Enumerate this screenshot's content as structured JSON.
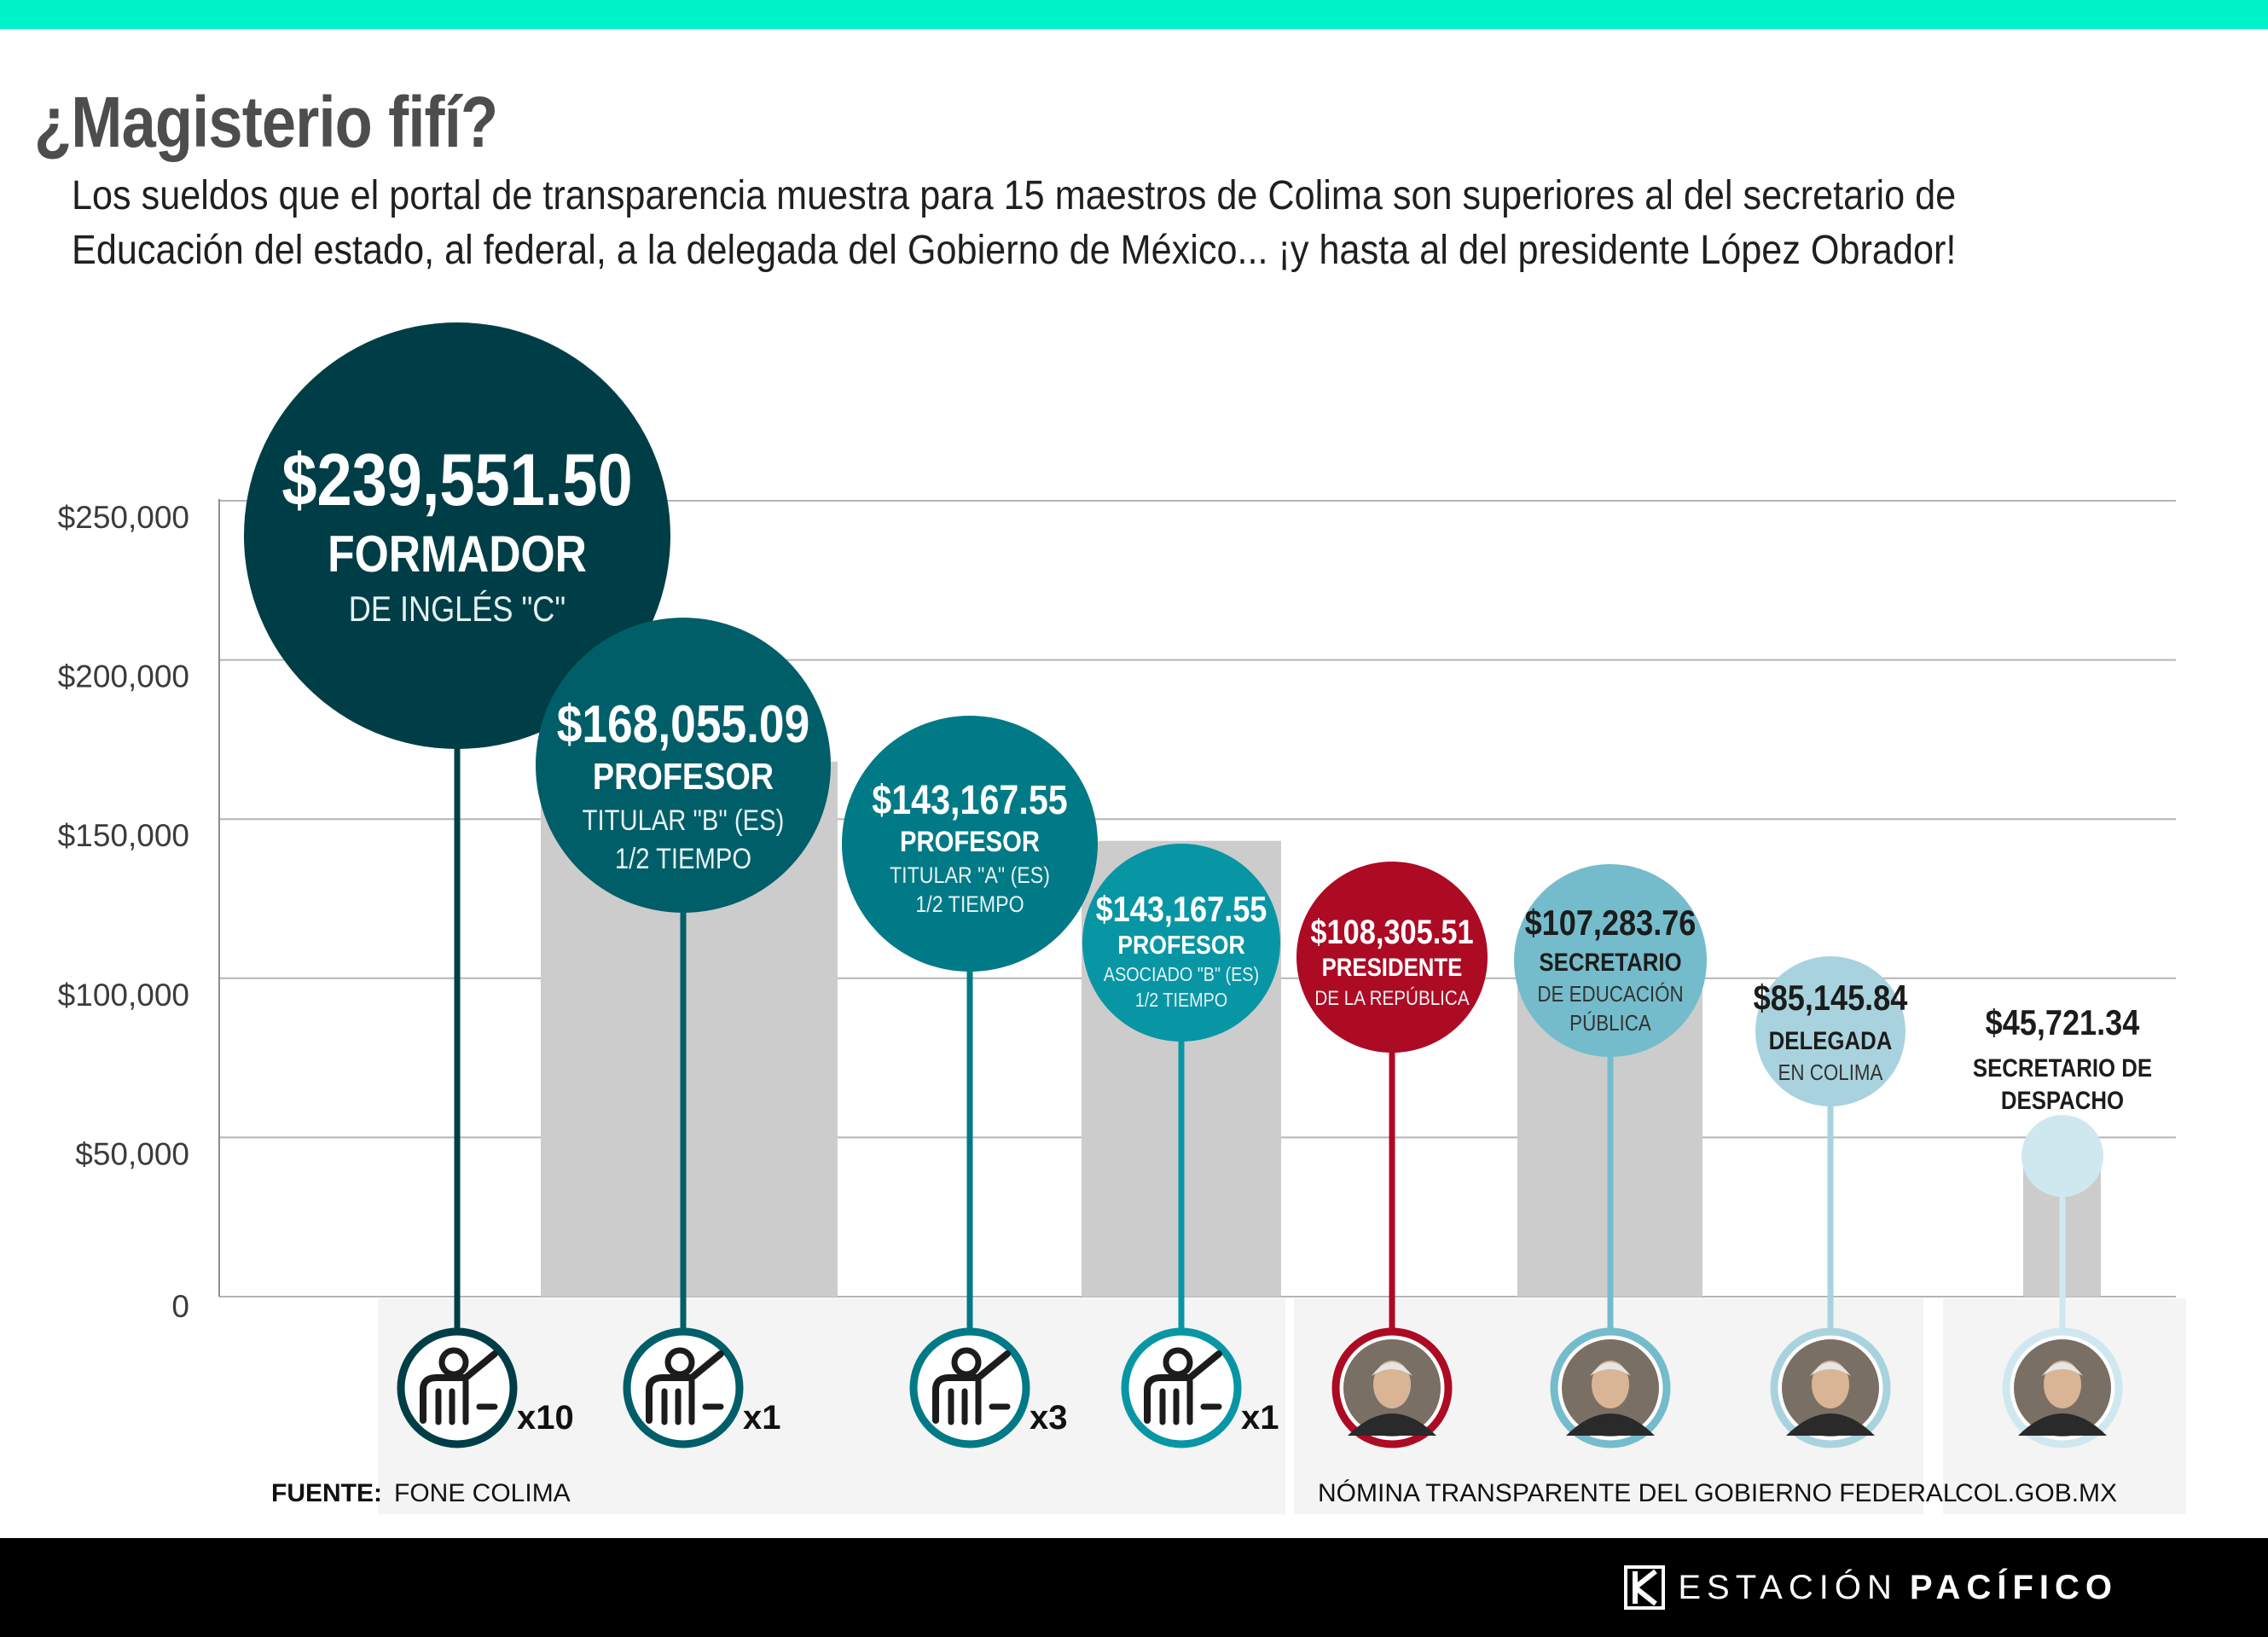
{
  "header": {
    "title": "¿Magisterio fifí?",
    "subtitle": "Los sueldos que el portal de transparencia muestra para 15 maestros de Colima son superiores al del secretario de Educación del estado, al federal, a la delegada del Gobierno de México... ¡y hasta al del presidente López Obrador!"
  },
  "colors": {
    "teal_dark": "#003e47",
    "teal_mid1": "#005e69",
    "teal_mid2": "#007a86",
    "teal_mid3": "#0896a5",
    "red": "#ad0a24",
    "blue_light1": "#74bccb",
    "blue_light2": "#a8d3de",
    "blue_light3": "#cfe8ef",
    "bar_gray": "#cccccc",
    "panel_gray": "#f4f4f4",
    "accent_top": "#00f2c8"
  },
  "chart_data": {
    "type": "bar",
    "title": "¿Magisterio fifí?",
    "ylim": [
      0,
      250000
    ],
    "yticks": [
      0,
      50000,
      100000,
      150000,
      200000,
      250000
    ],
    "ytick_labels": [
      "0",
      "$50,000",
      "$100,000",
      "$150,000",
      "$200,000",
      "$250,000"
    ],
    "grid": true,
    "source_label": "FUENTE:",
    "sources": [
      "FONE COLIMA",
      "NÓMINA TRANSPARENTE DEL GOBIERNO FEDERAL",
      "COL.GOB.MX"
    ],
    "bars": [
      {
        "value": 239551.5,
        "amount": "$239,551.50",
        "title": "FORMADOR",
        "detail": [
          "DE INGLÉS \"C\""
        ],
        "count": "x10",
        "icon": "teacher-icon",
        "color": "#003e47",
        "source": "FONE COLIMA"
      },
      {
        "value": 168055.09,
        "amount": "$168,055.09",
        "title": "PROFESOR",
        "detail": [
          "TITULAR \"B\" (ES)",
          "1/2 TIEMPO"
        ],
        "count": "x1",
        "icon": "teacher-icon",
        "color": "#005e69",
        "source": "FONE COLIMA"
      },
      {
        "value": 143167.55,
        "amount": "$143,167.55",
        "title": "PROFESOR",
        "detail": [
          "TITULAR \"A\" (ES)",
          "1/2 TIEMPO"
        ],
        "count": "x3",
        "icon": "teacher-icon",
        "color": "#007a86",
        "source": "FONE COLIMA"
      },
      {
        "value": 143167.55,
        "amount": "$143,167.55",
        "title": "PROFESOR",
        "detail": [
          "ASOCIADO \"B\" (ES)",
          "1/2 TIEMPO"
        ],
        "count": "x1",
        "icon": "teacher-icon",
        "color": "#0896a5",
        "source": "FONE COLIMA"
      },
      {
        "value": 108305.51,
        "amount": "$108,305.51",
        "title": "PRESIDENTE",
        "detail": [
          "DE LA REPÚBLICA"
        ],
        "count": "",
        "icon": "portrait-icon",
        "color": "#ad0a24",
        "source": "NÓMINA TRANSPARENTE DEL GOBIERNO FEDERAL"
      },
      {
        "value": 107283.76,
        "amount": "$107,283.76",
        "title": "SECRETARIO",
        "detail": [
          "DE EDUCACIÓN",
          "PÚBLICA"
        ],
        "count": "",
        "icon": "portrait-icon",
        "color": "#74bccb",
        "source": "NÓMINA TRANSPARENTE DEL GOBIERNO FEDERAL"
      },
      {
        "value": 85145.84,
        "amount": "$85,145.84",
        "title": "DELEGADA",
        "detail": [
          "EN COLIMA"
        ],
        "count": "",
        "icon": "portrait-icon",
        "color": "#a8d3de",
        "source": "NÓMINA TRANSPARENTE DEL GOBIERNO FEDERAL"
      },
      {
        "value": 45721.34,
        "amount": "$45,721.34",
        "title": "SECRETARIO DE",
        "detail": [
          "DESPACHO"
        ],
        "count": "",
        "icon": "portrait-icon",
        "color": "#cfe8ef",
        "source": "COL.GOB.MX"
      }
    ]
  },
  "footer": {
    "brand_light": "ESTACIÓN",
    "brand_bold": "PACÍFICO",
    "logo_icon": "estacion-pacifico-logo-icon"
  }
}
